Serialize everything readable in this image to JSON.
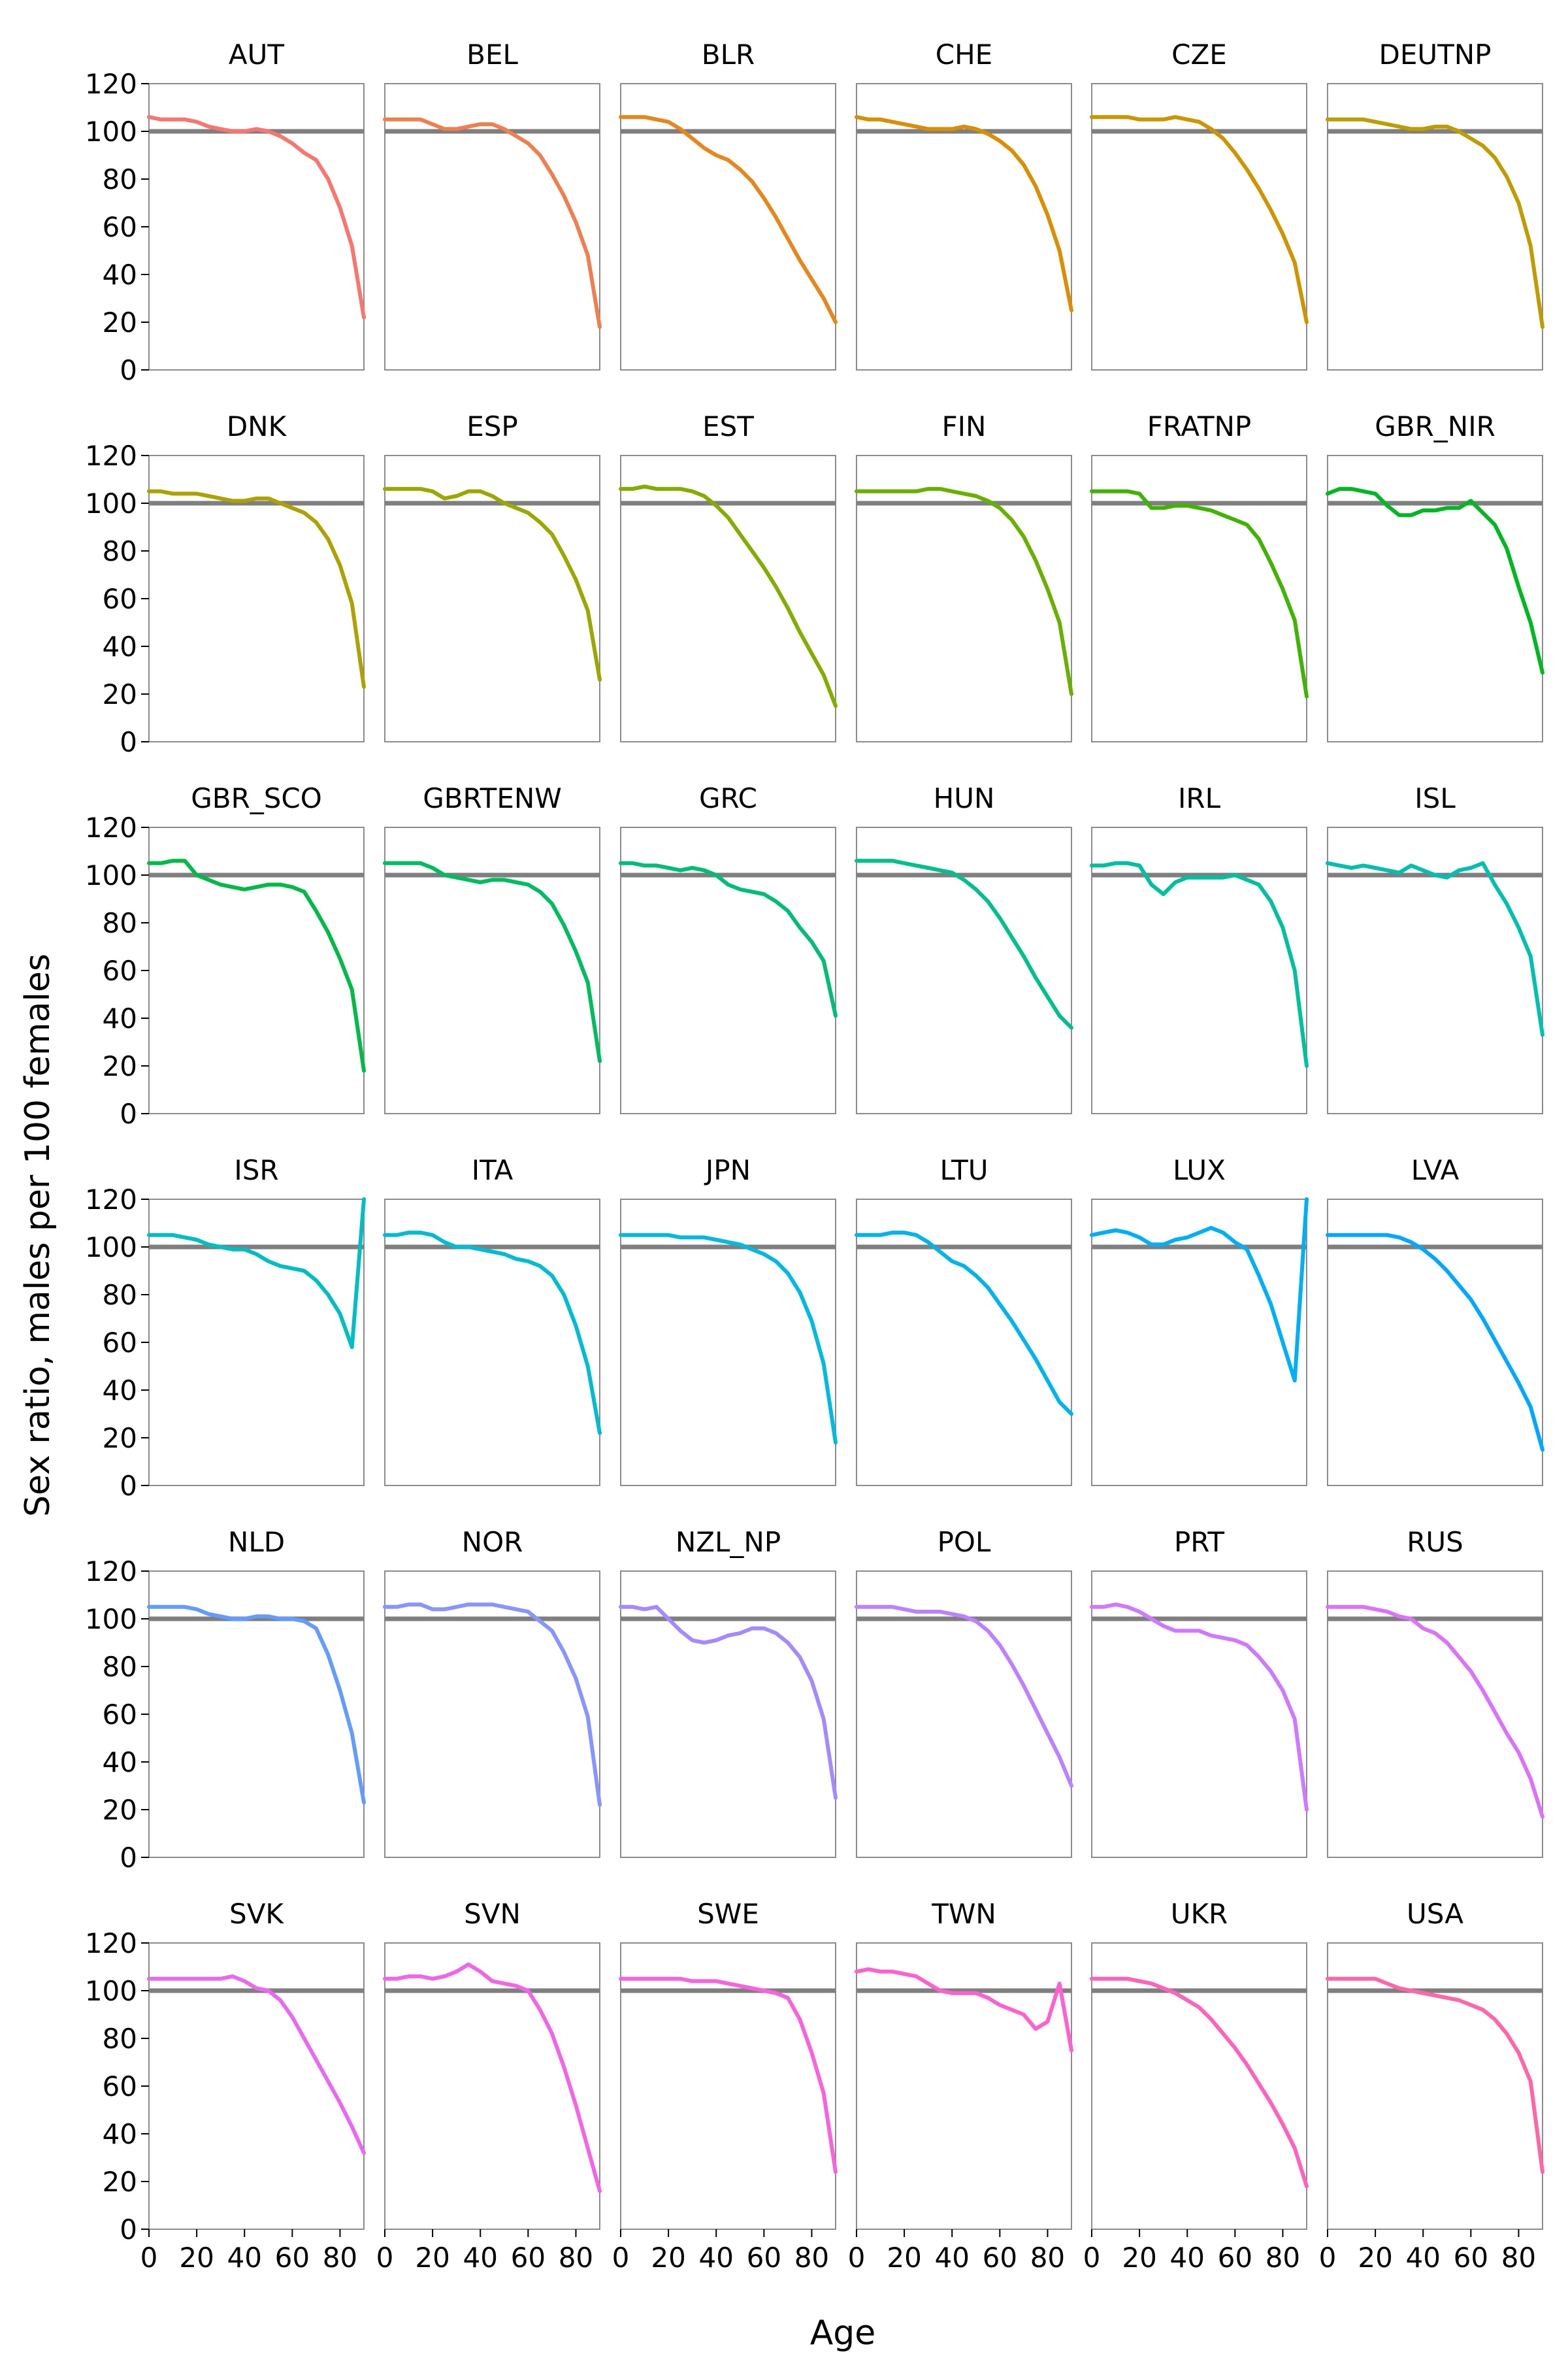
{
  "chart_data": {
    "type": "line",
    "layout": "small-multiples",
    "xlabel": "Age",
    "ylabel": "Sex ratio, males per 100 females",
    "xlim": [
      0,
      90
    ],
    "ylim": [
      0,
      120
    ],
    "xticks": [
      0,
      20,
      40,
      60,
      80
    ],
    "yticks": [
      0,
      20,
      40,
      60,
      80,
      100,
      120
    ],
    "reference_line": {
      "y": 100,
      "color": "#7f7f7f"
    },
    "x": [
      0,
      5,
      10,
      15,
      20,
      25,
      30,
      35,
      40,
      45,
      50,
      55,
      60,
      65,
      70,
      75,
      80,
      85,
      90
    ],
    "panels": [
      {
        "name": "AUT",
        "color": "#F8766D",
        "values": [
          106,
          105,
          105,
          105,
          104,
          102,
          101,
          100,
          100,
          101,
          100,
          98,
          95,
          91,
          88,
          80,
          68,
          52,
          22
        ]
      },
      {
        "name": "BEL",
        "color": "#F07F4F",
        "values": [
          105,
          105,
          105,
          105,
          103,
          101,
          101,
          102,
          103,
          103,
          101,
          98,
          95,
          90,
          82,
          73,
          62,
          48,
          18
        ]
      },
      {
        "name": "BLR",
        "color": "#E7861B",
        "values": [
          106,
          106,
          106,
          105,
          104,
          101,
          97,
          93,
          90,
          88,
          84,
          79,
          72,
          64,
          55,
          46,
          38,
          30,
          20
        ]
      },
      {
        "name": "CHE",
        "color": "#DB8E00",
        "values": [
          106,
          105,
          105,
          104,
          103,
          102,
          101,
          101,
          101,
          102,
          101,
          99,
          96,
          92,
          86,
          77,
          65,
          50,
          25
        ]
      },
      {
        "name": "CZE",
        "color": "#CE9500",
        "values": [
          106,
          106,
          106,
          106,
          105,
          105,
          105,
          106,
          105,
          104,
          101,
          97,
          91,
          84,
          76,
          67,
          57,
          45,
          20
        ]
      },
      {
        "name": "DEUTNP",
        "color": "#BF9C00",
        "values": [
          105,
          105,
          105,
          105,
          104,
          103,
          102,
          101,
          101,
          102,
          102,
          100,
          97,
          94,
          89,
          81,
          70,
          52,
          18
        ]
      },
      {
        "name": "DNK",
        "color": "#AEA200",
        "values": [
          105,
          105,
          104,
          104,
          104,
          103,
          102,
          101,
          101,
          102,
          102,
          100,
          98,
          96,
          92,
          85,
          74,
          58,
          23
        ]
      },
      {
        "name": "ESP",
        "color": "#9AA800",
        "values": [
          106,
          106,
          106,
          106,
          105,
          102,
          103,
          105,
          105,
          103,
          100,
          98,
          96,
          92,
          87,
          78,
          68,
          55,
          26
        ]
      },
      {
        "name": "EST",
        "color": "#84AD00",
        "values": [
          106,
          106,
          107,
          106,
          106,
          106,
          105,
          103,
          99,
          94,
          87,
          80,
          73,
          65,
          56,
          46,
          37,
          28,
          15
        ]
      },
      {
        "name": "FIN",
        "color": "#68B100",
        "values": [
          105,
          105,
          105,
          105,
          105,
          105,
          106,
          106,
          105,
          104,
          103,
          101,
          98,
          93,
          86,
          76,
          64,
          50,
          20
        ]
      },
      {
        "name": "FRATNP",
        "color": "#3EB500",
        "values": [
          105,
          105,
          105,
          105,
          104,
          98,
          98,
          99,
          99,
          98,
          97,
          95,
          93,
          91,
          85,
          75,
          64,
          51,
          19
        ]
      },
      {
        "name": "GBR_NIR",
        "color": "#00B81F",
        "values": [
          104,
          106,
          106,
          105,
          104,
          99,
          95,
          95,
          97,
          97,
          98,
          98,
          101,
          96,
          91,
          81,
          65,
          50,
          29
        ]
      },
      {
        "name": "GBR_SCO",
        "color": "#00BB45",
        "values": [
          105,
          105,
          106,
          106,
          100,
          98,
          96,
          95,
          94,
          95,
          96,
          96,
          95,
          93,
          85,
          76,
          65,
          52,
          18
        ]
      },
      {
        "name": "GBRTENW",
        "color": "#00BD5F",
        "values": [
          105,
          105,
          105,
          105,
          103,
          100,
          99,
          98,
          97,
          98,
          98,
          97,
          96,
          93,
          88,
          79,
          68,
          55,
          22
        ]
      },
      {
        "name": "GRC",
        "color": "#00BE77",
        "values": [
          105,
          105,
          104,
          104,
          103,
          102,
          103,
          102,
          100,
          96,
          94,
          93,
          92,
          89,
          85,
          78,
          72,
          64,
          41
        ]
      },
      {
        "name": "HUN",
        "color": "#00C08B",
        "values": [
          106,
          106,
          106,
          106,
          105,
          104,
          103,
          102,
          101,
          98,
          94,
          89,
          82,
          74,
          66,
          57,
          49,
          41,
          36
        ]
      },
      {
        "name": "IRL",
        "color": "#00C19F",
        "values": [
          104,
          104,
          105,
          105,
          104,
          96,
          92,
          97,
          99,
          99,
          99,
          99,
          100,
          98,
          96,
          89,
          78,
          60,
          20
        ]
      },
      {
        "name": "ISL",
        "color": "#00C0B2",
        "values": [
          105,
          104,
          103,
          104,
          103,
          102,
          101,
          104,
          102,
          100,
          99,
          102,
          103,
          105,
          96,
          88,
          78,
          66,
          33
        ]
      },
      {
        "name": "ISR",
        "color": "#00BFC4",
        "values": [
          105,
          105,
          105,
          104,
          103,
          101,
          100,
          99,
          99,
          97,
          94,
          92,
          91,
          90,
          86,
          80,
          72,
          58,
          120
        ]
      },
      {
        "name": "ITA",
        "color": "#00BDD4",
        "values": [
          105,
          105,
          106,
          106,
          105,
          102,
          100,
          100,
          99,
          98,
          97,
          95,
          94,
          92,
          88,
          80,
          67,
          50,
          22
        ]
      },
      {
        "name": "JPN",
        "color": "#00BAE0",
        "values": [
          105,
          105,
          105,
          105,
          105,
          104,
          104,
          104,
          103,
          102,
          101,
          99,
          97,
          94,
          89,
          81,
          69,
          51,
          18
        ]
      },
      {
        "name": "LTU",
        "color": "#00B5ED",
        "values": [
          105,
          105,
          105,
          106,
          106,
          105,
          102,
          98,
          94,
          92,
          88,
          83,
          76,
          69,
          61,
          53,
          44,
          35,
          30
        ]
      },
      {
        "name": "LUX",
        "color": "#00B0F6",
        "values": [
          105,
          106,
          107,
          106,
          104,
          101,
          101,
          103,
          104,
          106,
          108,
          106,
          102,
          99,
          88,
          76,
          60,
          44,
          120
        ]
      },
      {
        "name": "LVA",
        "color": "#00A9FF",
        "values": [
          105,
          105,
          105,
          105,
          105,
          105,
          104,
          102,
          99,
          95,
          90,
          84,
          78,
          70,
          61,
          52,
          43,
          33,
          15
        ]
      },
      {
        "name": "NLD",
        "color": "#619CFF",
        "values": [
          105,
          105,
          105,
          105,
          104,
          102,
          101,
          100,
          100,
          101,
          101,
          100,
          100,
          99,
          96,
          85,
          70,
          52,
          23
        ]
      },
      {
        "name": "NOR",
        "color": "#8895FF",
        "values": [
          105,
          105,
          106,
          106,
          104,
          104,
          105,
          106,
          106,
          106,
          105,
          104,
          103,
          99,
          95,
          86,
          75,
          59,
          22
        ]
      },
      {
        "name": "NZL_NP",
        "color": "#A58AFF",
        "values": [
          105,
          105,
          104,
          105,
          100,
          95,
          91,
          90,
          91,
          93,
          94,
          96,
          96,
          94,
          90,
          84,
          74,
          58,
          25
        ]
      },
      {
        "name": "POL",
        "color": "#BB81FF",
        "values": [
          105,
          105,
          105,
          105,
          104,
          103,
          103,
          103,
          102,
          101,
          99,
          95,
          89,
          81,
          72,
          62,
          52,
          42,
          30
        ]
      },
      {
        "name": "PRT",
        "color": "#CE79FF",
        "values": [
          105,
          105,
          106,
          105,
          103,
          100,
          97,
          95,
          95,
          95,
          93,
          92,
          91,
          89,
          84,
          78,
          70,
          58,
          20
        ]
      },
      {
        "name": "RUS",
        "color": "#DC71FA",
        "values": [
          105,
          105,
          105,
          105,
          104,
          103,
          101,
          100,
          96,
          94,
          90,
          84,
          78,
          70,
          61,
          52,
          44,
          33,
          17
        ]
      },
      {
        "name": "SVK",
        "color": "#E96AF1",
        "values": [
          105,
          105,
          105,
          105,
          105,
          105,
          105,
          106,
          104,
          101,
          100,
          96,
          89,
          80,
          71,
          62,
          53,
          43,
          32
        ]
      },
      {
        "name": "SVN",
        "color": "#F265E7",
        "values": [
          105,
          105,
          106,
          106,
          105,
          106,
          108,
          111,
          108,
          104,
          103,
          102,
          100,
          92,
          82,
          68,
          52,
          34,
          16
        ]
      },
      {
        "name": "SWE",
        "color": "#F962DD",
        "values": [
          105,
          105,
          105,
          105,
          105,
          105,
          104,
          104,
          104,
          103,
          102,
          101,
          100,
          99,
          97,
          88,
          74,
          57,
          24
        ]
      },
      {
        "name": "TWN",
        "color": "#FD61D1",
        "values": [
          108,
          109,
          108,
          108,
          107,
          106,
          103,
          100,
          99,
          99,
          99,
          97,
          94,
          92,
          90,
          84,
          87,
          103,
          75
        ]
      },
      {
        "name": "UKR",
        "color": "#FF62BC",
        "values": [
          105,
          105,
          105,
          105,
          104,
          103,
          101,
          99,
          96,
          93,
          88,
          82,
          76,
          69,
          61,
          53,
          44,
          34,
          18
        ]
      },
      {
        "name": "USA",
        "color": "#FF66A8",
        "values": [
          105,
          105,
          105,
          105,
          105,
          103,
          101,
          100,
          99,
          98,
          97,
          96,
          94,
          92,
          88,
          82,
          74,
          62,
          24
        ]
      }
    ]
  }
}
